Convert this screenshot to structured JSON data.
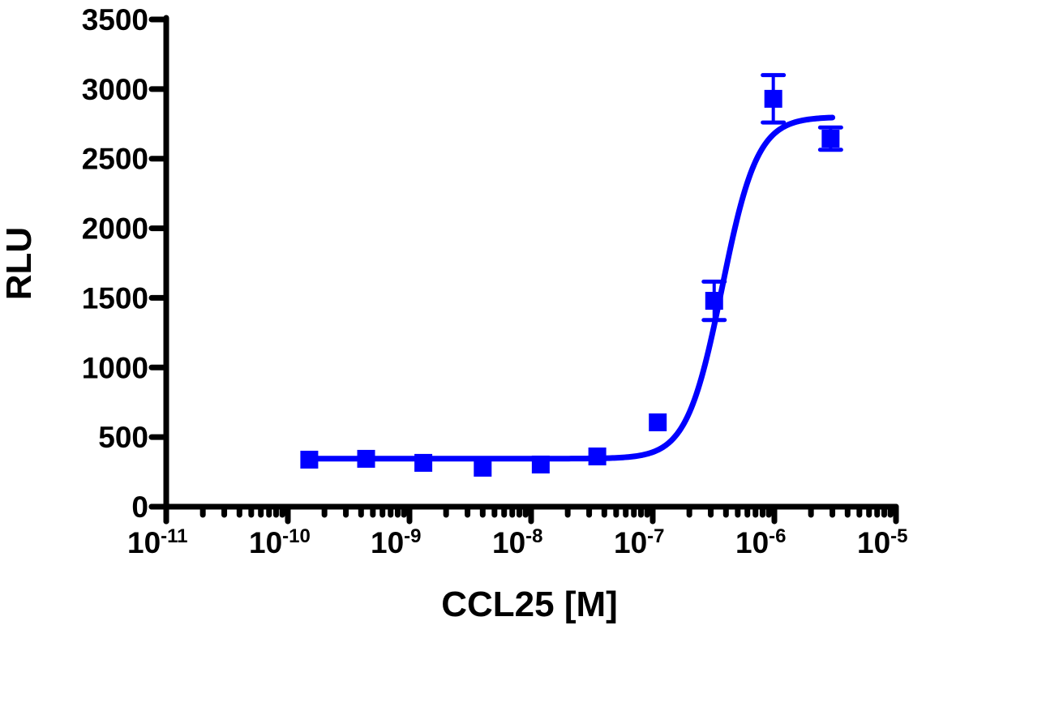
{
  "chart_data": {
    "type": "scatter",
    "title": "",
    "xlabel": "CCL25 [M]",
    "ylabel": "RLU",
    "xscale": "log",
    "xlim": [
      1e-11,
      1e-05
    ],
    "ylim": [
      0,
      3500
    ],
    "grid": false,
    "legend": null,
    "yticks": [
      0,
      500,
      1000,
      1500,
      2000,
      2500,
      3000,
      3500
    ],
    "ytick_labels": [
      "0",
      "500",
      "1000",
      "1500",
      "2000",
      "2500",
      "3000",
      "3500"
    ],
    "xticks_exp": [
      -11,
      -10,
      -9,
      -8,
      -7,
      -6,
      -5
    ],
    "xtick_base": "10",
    "xtick_labels": [
      "10^-11",
      "10^-10",
      "10^-9",
      "10^-8",
      "10^-7",
      "10^-6",
      "10^-5"
    ],
    "color": "#0000ff",
    "series": [
      {
        "name": "CCL25",
        "marker": "square",
        "x": [
          1.5e-10,
          4.4e-10,
          1.3e-09,
          4e-09,
          1.2e-08,
          3.5e-08,
          1.1e-07,
          3.2e-07,
          9.8e-07,
          2.9e-06
        ],
        "y": [
          338,
          344,
          315,
          280,
          303,
          361,
          606,
          1479,
          2930,
          2644
        ],
        "yerr": [
          0,
          0,
          0,
          0,
          0,
          0,
          0,
          138,
          170,
          80
        ]
      }
    ],
    "fit": {
      "model": "sigmoidal dose-response",
      "bottom": 345,
      "top": 2800,
      "logEC50": -6.43,
      "hill": 3.0,
      "x_range": [
        1.5e-10,
        3e-06
      ]
    }
  }
}
